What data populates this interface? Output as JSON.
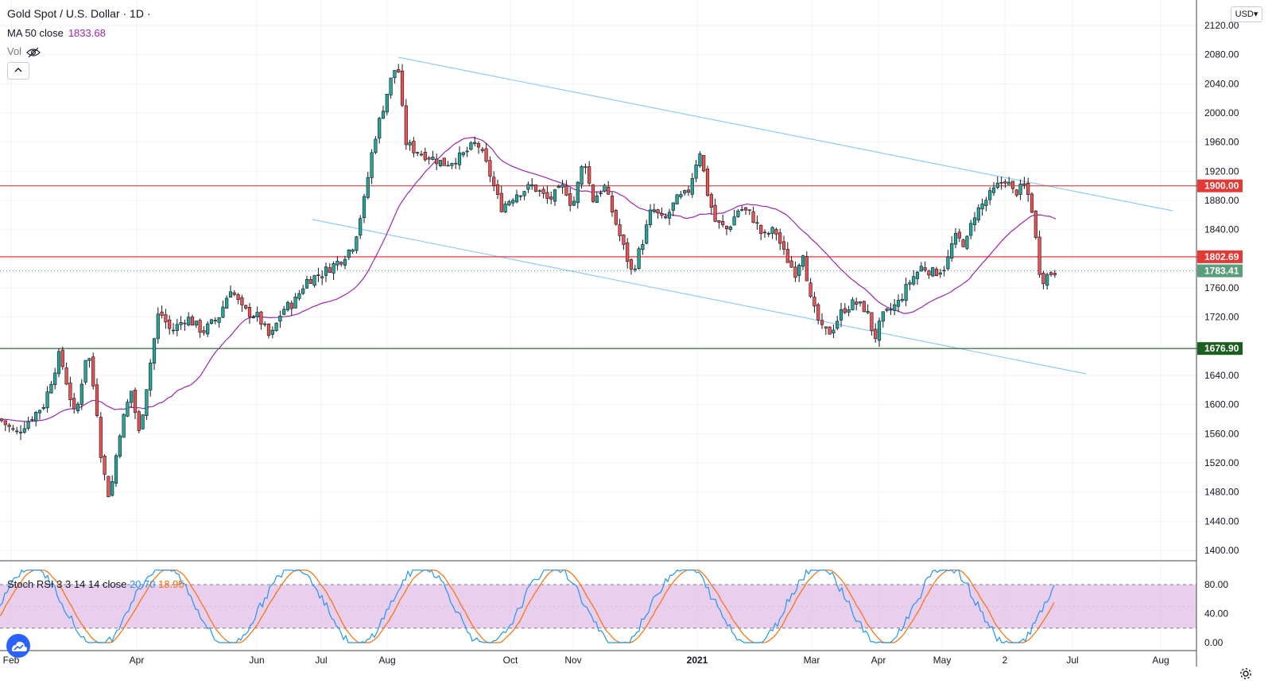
{
  "header": {
    "title": "Gold Spot / U.S. Dollar · 1D ·",
    "ma_label": "MA 50 close",
    "ma_value": "1833.68",
    "vol_label": "Vol",
    "collapse_icon": "chevron-up-icon",
    "vol_visibility_icon": "eye-slash-icon"
  },
  "currency": "USD▾",
  "stoch": {
    "label": "Stoch RSI 3 3 14 14 close",
    "k_value": "20.70",
    "d_value": "18.95",
    "k_color": "#2196f3",
    "d_color": "#ff6d00",
    "y_ticks": [
      "80.00",
      "40.00",
      "0.00"
    ]
  },
  "colors": {
    "up": "#26a69a",
    "down": "#ef5350",
    "ma": "#9c27b0",
    "channel": "#90caf9",
    "resistance": "#e53935",
    "support": "#1b5e20",
    "stoch_band": "#e1bee7",
    "last_price": "#5a9e7c"
  },
  "chart_data": {
    "type": "candlestick",
    "symbol": "Gold Spot / U.S. Dollar",
    "interval": "1D",
    "y_ticks": [
      "2120.00",
      "2080.00",
      "2040.00",
      "2000.00",
      "1960.00",
      "1920.00",
      "1880.00",
      "1840.00",
      "1800.00",
      "1760.00",
      "1720.00",
      "1680.00",
      "1640.00",
      "1600.00",
      "1560.00",
      "1520.00",
      "1480.00",
      "1440.00",
      "1400.00"
    ],
    "x_ticks": [
      "Feb",
      "Apr",
      "Jun",
      "Jul",
      "Aug",
      "Oct",
      "Nov",
      "2021",
      "Mar",
      "Apr",
      "May",
      "2",
      "Jul",
      "Aug"
    ],
    "price_labels": [
      {
        "value": "1900.00",
        "kind": "resistance"
      },
      {
        "value": "1802.69",
        "kind": "resistance"
      },
      {
        "value": "1783.41",
        "kind": "last"
      },
      {
        "value": "1676.90",
        "kind": "support"
      }
    ],
    "horizontal_levels": [
      1900.0,
      1802.69,
      1676.9
    ],
    "last_price": 1783.41,
    "ylim": [
      1393,
      2128
    ],
    "ma_label": "MA 50 close"
  }
}
